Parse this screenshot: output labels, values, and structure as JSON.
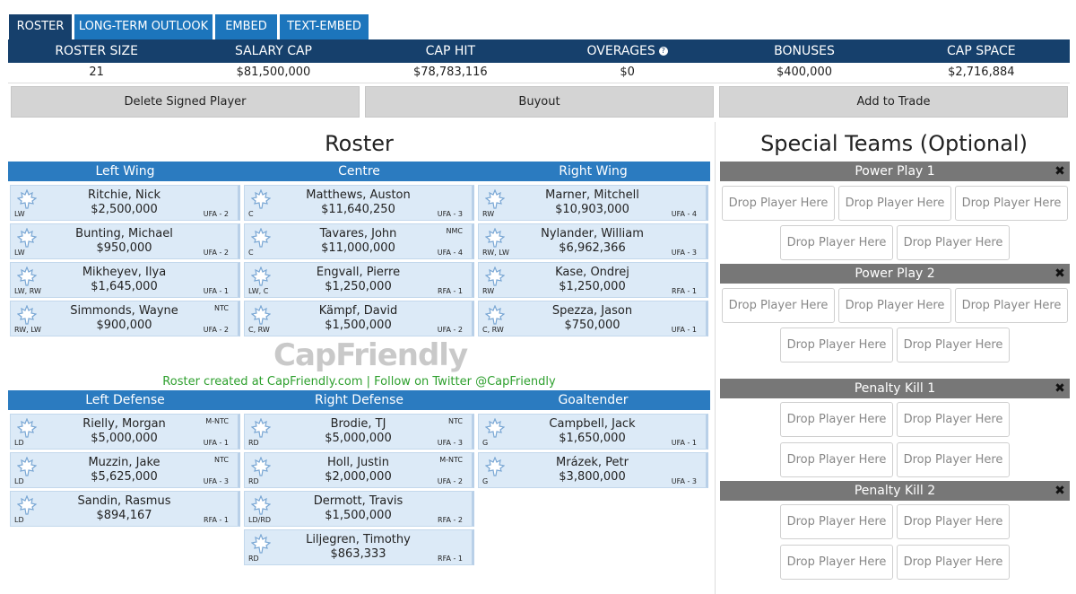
{
  "tabs": [
    "ROSTER",
    "LONG-TERM OUTLOOK",
    "EMBED",
    "TEXT-EMBED"
  ],
  "summary": [
    {
      "label": "ROSTER SIZE",
      "value": "21"
    },
    {
      "label": "SALARY CAP",
      "value": "$81,500,000"
    },
    {
      "label": "CAP HIT",
      "value": "$78,783,116"
    },
    {
      "label": "OVERAGES",
      "value": "$0"
    },
    {
      "label": "BONUSES",
      "value": "$400,000"
    },
    {
      "label": "CAP SPACE",
      "value": "$2,716,884"
    }
  ],
  "actions": [
    "Delete Signed Player",
    "Buyout",
    "Add to Trade"
  ],
  "roster": {
    "title": "Roster",
    "logo": "CapFriendly",
    "footer": "Roster created at CapFriendly.com | Follow on Twitter @CapFriendly",
    "forwards": [
      {
        "position": "Left Wing",
        "players": [
          {
            "name": "Ritchie, Nick",
            "salary": "$2,500,000",
            "pos": "LW",
            "status": "UFA - 2"
          },
          {
            "name": "Bunting, Michael",
            "salary": "$950,000",
            "pos": "LW",
            "status": "UFA - 2"
          },
          {
            "name": "Mikheyev, Ilya",
            "salary": "$1,645,000",
            "pos": "LW, RW",
            "status": "UFA - 1"
          },
          {
            "name": "Simmonds, Wayne",
            "salary": "$900,000",
            "pos": "RW, LW",
            "status": "UFA - 2",
            "clause": "NTC"
          }
        ]
      },
      {
        "position": "Centre",
        "players": [
          {
            "name": "Matthews, Auston",
            "salary": "$11,640,250",
            "pos": "C",
            "status": "UFA - 3"
          },
          {
            "name": "Tavares, John",
            "salary": "$11,000,000",
            "pos": "C",
            "status": "UFA - 4",
            "clause": "NMC"
          },
          {
            "name": "Engvall, Pierre",
            "salary": "$1,250,000",
            "pos": "LW, C",
            "status": "RFA - 1"
          },
          {
            "name": "Kämpf, David",
            "salary": "$1,500,000",
            "pos": "C, RW",
            "status": "UFA - 2"
          }
        ]
      },
      {
        "position": "Right Wing",
        "players": [
          {
            "name": "Marner, Mitchell",
            "salary": "$10,903,000",
            "pos": "RW",
            "status": "UFA - 4"
          },
          {
            "name": "Nylander, William",
            "salary": "$6,962,366",
            "pos": "RW, LW",
            "status": "UFA - 3"
          },
          {
            "name": "Kase, Ondrej",
            "salary": "$1,250,000",
            "pos": "RW",
            "status": "RFA - 1"
          },
          {
            "name": "Spezza, Jason",
            "salary": "$750,000",
            "pos": "C, RW",
            "status": "UFA - 1"
          }
        ]
      }
    ],
    "defense": [
      {
        "position": "Left Defense",
        "players": [
          {
            "name": "Rielly, Morgan",
            "salary": "$5,000,000",
            "pos": "LD",
            "status": "UFA - 1",
            "clause": "M-NTC"
          },
          {
            "name": "Muzzin, Jake",
            "salary": "$5,625,000",
            "pos": "LD",
            "status": "UFA - 3",
            "clause": "NTC"
          },
          {
            "name": "Sandin, Rasmus",
            "salary": "$894,167",
            "pos": "LD",
            "status": "RFA - 1"
          }
        ]
      },
      {
        "position": "Right Defense",
        "players": [
          {
            "name": "Brodie, TJ",
            "salary": "$5,000,000",
            "pos": "RD",
            "status": "UFA - 3",
            "clause": "NTC"
          },
          {
            "name": "Holl, Justin",
            "salary": "$2,000,000",
            "pos": "RD",
            "status": "UFA - 2",
            "clause": "M-NTC"
          },
          {
            "name": "Dermott, Travis",
            "salary": "$1,500,000",
            "pos": "LD/RD",
            "status": "RFA - 2"
          },
          {
            "name": "Liljegren, Timothy",
            "salary": "$863,333",
            "pos": "RD",
            "status": "RFA - 1"
          }
        ]
      },
      {
        "position": "Goaltender",
        "players": [
          {
            "name": "Campbell, Jack",
            "salary": "$1,650,000",
            "pos": "G",
            "status": "UFA - 1"
          },
          {
            "name": "Mrázek, Petr",
            "salary": "$3,800,000",
            "pos": "G",
            "status": "UFA - 3"
          }
        ]
      }
    ]
  },
  "special_teams": {
    "title": "Special Teams (Optional)",
    "units": [
      {
        "name": "Power Play 1",
        "slots": [
          "Drop Player Here",
          "Drop Player Here",
          "Drop Player Here",
          "Drop Player Here",
          "Drop Player Here"
        ]
      },
      {
        "name": "Power Play 2",
        "slots": [
          "Drop Player Here",
          "Drop Player Here",
          "Drop Player Here",
          "Drop Player Here",
          "Drop Player Here"
        ]
      },
      {
        "name": "Penalty Kill 1",
        "slots": [
          "Drop Player Here",
          "Drop Player Here",
          "Drop Player Here",
          "Drop Player Here"
        ]
      },
      {
        "name": "Penalty Kill 2",
        "slots": [
          "Drop Player Here",
          "Drop Player Here",
          "Drop Player Here",
          "Drop Player Here"
        ]
      }
    ]
  }
}
